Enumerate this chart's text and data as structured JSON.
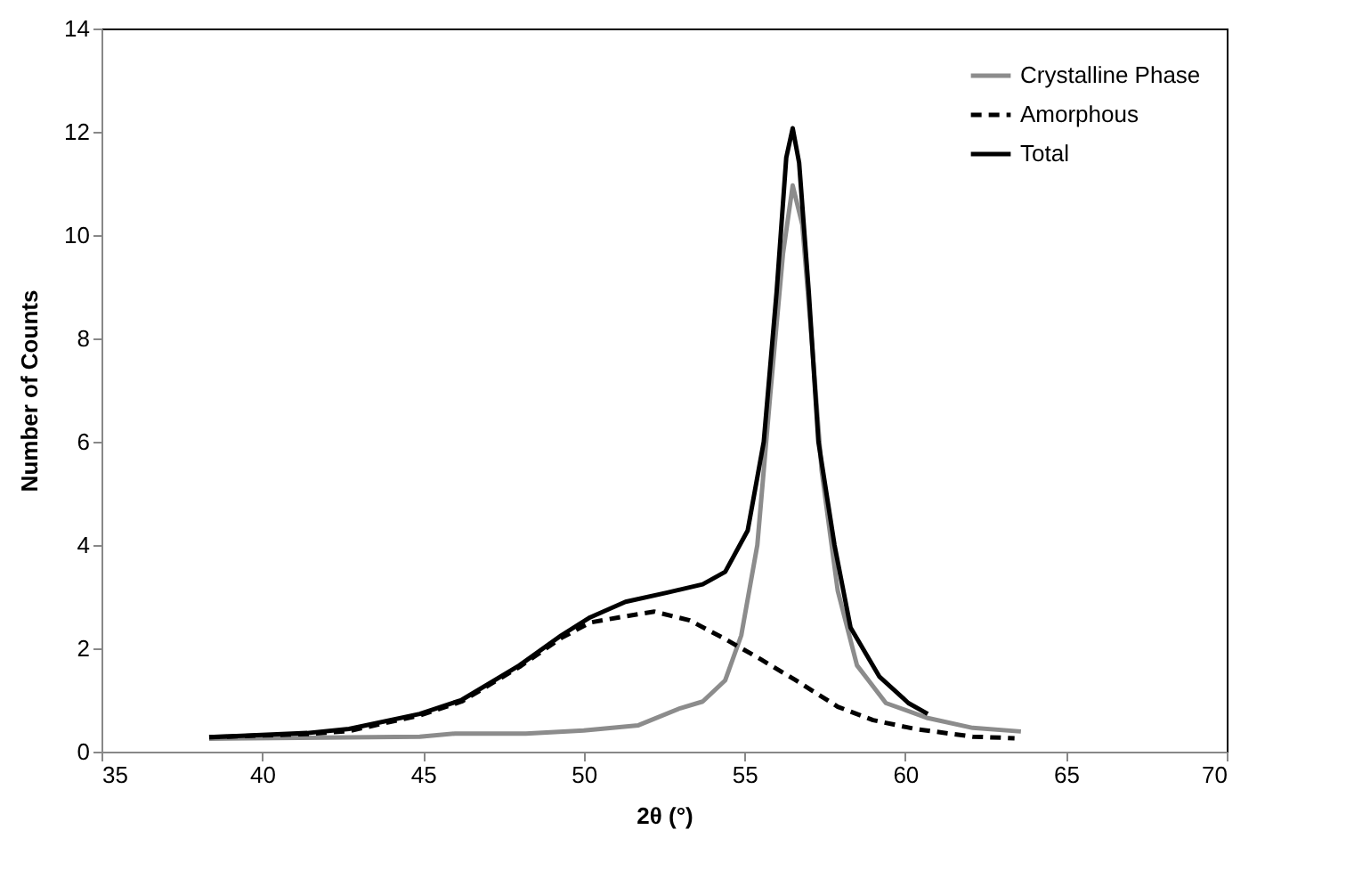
{
  "chart_data": {
    "type": "line",
    "xlabel": "2θ (°)",
    "ylabel": "Number of Counts",
    "xlim": [
      35,
      70
    ],
    "xticks": [
      35,
      40,
      45,
      50,
      55,
      60,
      65,
      70
    ],
    "ylim": [
      0,
      14
    ],
    "yticks": [
      0,
      2,
      4,
      6,
      8,
      10,
      12,
      14
    ],
    "grid": false,
    "legend": "top right",
    "marker": "none",
    "series": [
      {
        "name": "Crystalline Phase",
        "color": "#8c8c8c",
        "line_style": "solid",
        "x": [
          38.35,
          44.9,
          46.0,
          48.2,
          50.0,
          51.7,
          53.0,
          53.7,
          54.4,
          54.9,
          55.4,
          55.8,
          56.2,
          56.5,
          56.8,
          57.1,
          57.4,
          57.9,
          58.5,
          59.4,
          60.7,
          62.1,
          63.6
        ],
        "values": [
          0.25,
          0.29,
          0.35,
          0.35,
          0.41,
          0.51,
          0.84,
          0.97,
          1.38,
          2.25,
          4.0,
          6.9,
          9.65,
          10.96,
          10.2,
          7.9,
          5.44,
          3.12,
          1.67,
          0.94,
          0.65,
          0.46,
          0.39
        ]
      },
      {
        "name": "Amorphous",
        "color": "#000000",
        "line_style": "dashed",
        "x": [
          38.35,
          41.4,
          42.7,
          44.9,
          46.2,
          48.0,
          49.3,
          50.2,
          51.1,
          52.2,
          53.3,
          54.4,
          55.5,
          56.6,
          57.9,
          59.0,
          60.3,
          62.1,
          63.4
        ],
        "values": [
          0.28,
          0.34,
          0.4,
          0.7,
          0.97,
          1.64,
          2.2,
          2.5,
          2.6,
          2.71,
          2.54,
          2.18,
          1.79,
          1.38,
          0.87,
          0.61,
          0.44,
          0.29,
          0.26
        ]
      },
      {
        "name": "Total",
        "color": "#000000",
        "line_style": "solid",
        "x": [
          38.35,
          41.4,
          42.7,
          44.9,
          46.2,
          48.0,
          49.3,
          50.2,
          51.3,
          52.6,
          53.7,
          54.4,
          55.1,
          55.6,
          56.0,
          56.3,
          56.5,
          56.7,
          57.0,
          57.3,
          57.8,
          58.3,
          59.2,
          60.1,
          60.7
        ],
        "values": [
          0.28,
          0.36,
          0.44,
          0.73,
          1.0,
          1.67,
          2.25,
          2.6,
          2.9,
          3.08,
          3.24,
          3.48,
          4.28,
          6.0,
          8.9,
          11.5,
          12.07,
          11.4,
          8.9,
          6.0,
          4.0,
          2.4,
          1.45,
          0.94,
          0.73
        ]
      }
    ]
  }
}
